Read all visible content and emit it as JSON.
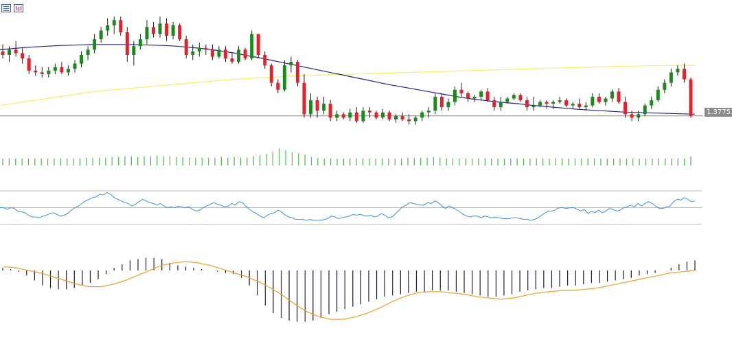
{
  "toolbar": {
    "icons": [
      "grid-icon",
      "chart-mode-icon"
    ]
  },
  "price_label": "1.37753",
  "colors": {
    "bull": "#1a8a1a",
    "bear": "#e8202a",
    "ma_fast": "#1f1fa0",
    "ma_slow": "#ffee55",
    "volume": "#44bb44",
    "rsi": "#3a8fdc",
    "hist": "#1a1a40",
    "signal": "#f0a020",
    "price_line": "#8a8a8a",
    "guide": "#b8b8b8"
  },
  "chart_data": [
    {
      "type": "candlestick",
      "title": "",
      "xlabel": "",
      "ylabel": "",
      "ylim": [
        1.369,
        1.408
      ],
      "current_price": 1.37753,
      "candles": [
        [
          1.396,
          1.398,
          1.394,
          1.395
        ],
        [
          1.395,
          1.3975,
          1.393,
          1.3965
        ],
        [
          1.3965,
          1.399,
          1.3945,
          1.3955
        ],
        [
          1.3955,
          1.397,
          1.3925,
          1.394
        ],
        [
          1.394,
          1.395,
          1.3895,
          1.3905
        ],
        [
          1.3905,
          1.392,
          1.389,
          1.39
        ],
        [
          1.39,
          1.3915,
          1.3885,
          1.3895
        ],
        [
          1.3895,
          1.3915,
          1.3885,
          1.3905
        ],
        [
          1.3905,
          1.3925,
          1.3895,
          1.3915
        ],
        [
          1.3915,
          1.393,
          1.3895,
          1.39
        ],
        [
          1.39,
          1.392,
          1.389,
          1.391
        ],
        [
          1.391,
          1.3935,
          1.39,
          1.3925
        ],
        [
          1.3925,
          1.396,
          1.3915,
          1.395
        ],
        [
          1.395,
          1.3975,
          1.3935,
          1.3965
        ],
        [
          1.3965,
          1.401,
          1.3955,
          1.3995
        ],
        [
          1.3995,
          1.403,
          1.3985,
          1.402
        ],
        [
          1.402,
          1.4055,
          1.4005,
          1.4035
        ],
        [
          1.4035,
          1.406,
          1.401,
          1.405
        ],
        [
          1.405,
          1.406,
          1.4005,
          1.4015
        ],
        [
          1.4015,
          1.403,
          1.393,
          1.395
        ],
        [
          1.395,
          1.399,
          1.392,
          1.3975
        ],
        [
          1.3975,
          1.401,
          1.3965,
          1.3995
        ],
        [
          1.3995,
          1.405,
          1.398,
          1.403
        ],
        [
          1.403,
          1.4045,
          1.4,
          1.401
        ],
        [
          1.401,
          1.406,
          1.4,
          1.404
        ],
        [
          1.404,
          1.4055,
          1.399,
          1.4005
        ],
        [
          1.4005,
          1.4045,
          1.3995,
          1.4035
        ],
        [
          1.4035,
          1.404,
          1.399,
          1.3995
        ],
        [
          1.3995,
          1.4005,
          1.394,
          1.395
        ],
        [
          1.395,
          1.398,
          1.3935,
          1.396
        ],
        [
          1.396,
          1.3985,
          1.3945,
          1.397
        ],
        [
          1.397,
          1.398,
          1.395,
          1.3965
        ],
        [
          1.3965,
          1.398,
          1.3935,
          1.3945
        ],
        [
          1.3945,
          1.3975,
          1.394,
          1.3965
        ],
        [
          1.3965,
          1.3975,
          1.393,
          1.394
        ],
        [
          1.394,
          1.3955,
          1.3925,
          1.393
        ],
        [
          1.393,
          1.3975,
          1.3925,
          1.3965
        ],
        [
          1.3965,
          1.397,
          1.3935,
          1.394
        ],
        [
          1.394,
          1.402,
          1.3935,
          1.401
        ],
        [
          1.401,
          1.401,
          1.394,
          1.395
        ],
        [
          1.395,
          1.396,
          1.391,
          1.392
        ],
        [
          1.392,
          1.3925,
          1.386,
          1.387
        ],
        [
          1.387,
          1.388,
          1.384,
          1.385
        ],
        [
          1.385,
          1.3935,
          1.3845,
          1.392
        ],
        [
          1.392,
          1.3945,
          1.39,
          1.393
        ],
        [
          1.393,
          1.3935,
          1.386,
          1.387
        ],
        [
          1.387,
          1.3895,
          1.377,
          1.378
        ],
        [
          1.378,
          1.384,
          1.377,
          1.382
        ],
        [
          1.382,
          1.383,
          1.377,
          1.379
        ],
        [
          1.379,
          1.383,
          1.378,
          1.381
        ],
        [
          1.381,
          1.382,
          1.376,
          1.377
        ],
        [
          1.377,
          1.379,
          1.376,
          1.378
        ],
        [
          1.378,
          1.3785,
          1.3765,
          1.377
        ],
        [
          1.377,
          1.3795,
          1.376,
          1.3785
        ],
        [
          1.3785,
          1.38,
          1.3755,
          1.376
        ],
        [
          1.376,
          1.38,
          1.3755,
          1.379
        ],
        [
          1.379,
          1.38,
          1.377,
          1.3785
        ],
        [
          1.3785,
          1.379,
          1.3765,
          1.377
        ],
        [
          1.377,
          1.3795,
          1.3765,
          1.3785
        ],
        [
          1.3785,
          1.379,
          1.376,
          1.3765
        ],
        [
          1.3765,
          1.378,
          1.3755,
          1.3775
        ],
        [
          1.3775,
          1.3785,
          1.376,
          1.3765
        ],
        [
          1.3765,
          1.378,
          1.375,
          1.376
        ],
        [
          1.376,
          1.3775,
          1.375,
          1.377
        ],
        [
          1.377,
          1.379,
          1.376,
          1.3785
        ],
        [
          1.3785,
          1.38,
          1.377,
          1.379
        ],
        [
          1.379,
          1.384,
          1.378,
          1.383
        ],
        [
          1.383,
          1.384,
          1.379,
          1.38
        ],
        [
          1.38,
          1.3825,
          1.379,
          1.3815
        ],
        [
          1.3815,
          1.386,
          1.3805,
          1.385
        ],
        [
          1.385,
          1.387,
          1.383,
          1.384
        ],
        [
          1.384,
          1.3845,
          1.3815,
          1.3825
        ],
        [
          1.3825,
          1.3835,
          1.3815,
          1.383
        ],
        [
          1.383,
          1.385,
          1.382,
          1.3845
        ],
        [
          1.3845,
          1.3855,
          1.3815,
          1.382
        ],
        [
          1.382,
          1.383,
          1.379,
          1.38
        ],
        [
          1.38,
          1.383,
          1.379,
          1.3815
        ],
        [
          1.3815,
          1.383,
          1.381,
          1.3825
        ],
        [
          1.3825,
          1.384,
          1.382,
          1.3835
        ],
        [
          1.3835,
          1.384,
          1.3815,
          1.382
        ],
        [
          1.382,
          1.383,
          1.379,
          1.38
        ],
        [
          1.38,
          1.383,
          1.379,
          1.3805
        ],
        [
          1.3805,
          1.382,
          1.38,
          1.3815
        ],
        [
          1.3815,
          1.382,
          1.3795,
          1.381
        ],
        [
          1.381,
          1.382,
          1.3795,
          1.3815
        ],
        [
          1.3815,
          1.383,
          1.381,
          1.382
        ],
        [
          1.382,
          1.3825,
          1.38,
          1.3805
        ],
        [
          1.3805,
          1.3815,
          1.3795,
          1.381
        ],
        [
          1.381,
          1.3825,
          1.3795,
          1.38
        ],
        [
          1.38,
          1.3815,
          1.379,
          1.3805
        ],
        [
          1.3805,
          1.384,
          1.38,
          1.383
        ],
        [
          1.383,
          1.384,
          1.381,
          1.3815
        ],
        [
          1.3815,
          1.383,
          1.3805,
          1.3825
        ],
        [
          1.3825,
          1.385,
          1.3815,
          1.3845
        ],
        [
          1.3845,
          1.3855,
          1.381,
          1.3815
        ],
        [
          1.3815,
          1.383,
          1.377,
          1.378
        ],
        [
          1.378,
          1.379,
          1.376,
          1.377
        ],
        [
          1.377,
          1.379,
          1.376,
          1.378
        ],
        [
          1.378,
          1.381,
          1.3775,
          1.3805
        ],
        [
          1.3805,
          1.383,
          1.3795,
          1.382
        ],
        [
          1.382,
          1.386,
          1.3815,
          1.385
        ],
        [
          1.385,
          1.388,
          1.384,
          1.387
        ],
        [
          1.387,
          1.391,
          1.386,
          1.39
        ],
        [
          1.39,
          1.392,
          1.389,
          1.391
        ],
        [
          1.391,
          1.3925,
          1.387,
          1.388
        ],
        [
          1.388,
          1.3885,
          1.377,
          1.3775
        ]
      ],
      "ma_fast": [
        1.3965,
        1.3968,
        1.3971,
        1.3973,
        1.3975,
        1.3977,
        1.3978,
        1.3979,
        1.398,
        1.398,
        1.398,
        1.398,
        1.3979,
        1.3978,
        1.3977,
        1.3975,
        1.3972,
        1.3969,
        1.3965,
        1.396,
        1.3955,
        1.3948,
        1.3942,
        1.3935,
        1.3928,
        1.3921,
        1.3914,
        1.3907,
        1.39,
        1.3893,
        1.3886,
        1.3879,
        1.3872,
        1.3865,
        1.3859,
        1.3853,
        1.3847,
        1.3841,
        1.3835,
        1.3829,
        1.3824,
        1.382,
        1.3816,
        1.3813,
        1.381,
        1.3806,
        1.3803,
        1.38,
        1.3797,
        1.3794,
        1.3792,
        1.379,
        1.3788,
        1.3786,
        1.3785,
        1.3784,
        1.3783,
        1.3782,
        1.3781,
        1.378
      ],
      "ma_slow": [
        1.3805,
        1.381,
        1.3815,
        1.382,
        1.3825,
        1.383,
        1.3835,
        1.384,
        1.3845,
        1.3848,
        1.3851,
        1.3854,
        1.3857,
        1.386,
        1.3863,
        1.3866,
        1.3869,
        1.3872,
        1.3875,
        1.3878,
        1.388,
        1.3882,
        1.3884,
        1.3886,
        1.3888,
        1.389,
        1.3891,
        1.3892,
        1.3893,
        1.3894,
        1.3895,
        1.3896,
        1.3897,
        1.3898,
        1.3899,
        1.39,
        1.3901,
        1.3902,
        1.3903,
        1.3904,
        1.3905,
        1.3906,
        1.3907,
        1.3908,
        1.3909,
        1.391,
        1.3911,
        1.3912,
        1.3913,
        1.3914,
        1.3915,
        1.3916,
        1.3917,
        1.3918,
        1.3918,
        1.3919,
        1.3919,
        1.392,
        1.392,
        1.392
      ]
    },
    {
      "type": "bar",
      "title": "",
      "values": [
        9,
        9,
        9,
        9,
        9,
        9,
        9,
        9,
        9,
        9,
        9,
        9,
        9,
        10,
        10,
        10,
        10,
        11,
        11,
        12,
        12,
        11,
        12,
        12,
        13,
        12,
        12,
        11,
        11,
        10,
        10,
        10,
        10,
        10,
        11,
        10,
        11,
        10,
        10,
        12,
        13,
        15,
        18,
        22,
        20,
        17,
        16,
        14,
        11,
        10,
        9,
        9,
        9,
        9,
        9,
        9,
        9,
        9,
        9,
        9,
        9,
        9,
        9,
        10,
        10,
        10,
        10,
        11,
        10,
        9,
        9,
        9,
        9,
        9,
        9,
        9,
        9,
        9,
        9,
        9,
        9,
        9,
        9,
        9,
        9,
        9,
        9,
        9,
        9,
        9,
        9,
        9,
        9,
        9,
        9,
        9,
        9,
        9,
        9,
        9,
        9,
        9,
        9,
        9,
        9,
        9,
        9,
        12
      ],
      "ylim": [
        0,
        25
      ]
    },
    {
      "type": "line",
      "title": "",
      "levels": [
        70,
        50,
        30
      ],
      "ylim": [
        30,
        70
      ],
      "values": [
        50,
        50,
        48,
        50,
        49,
        46,
        45,
        44,
        41,
        39,
        39,
        38,
        40,
        41,
        43,
        44,
        42,
        40,
        41,
        43,
        47,
        50,
        52,
        55,
        58,
        60,
        62,
        63,
        66,
        65,
        68,
        66,
        62,
        60,
        58,
        56,
        55,
        52,
        54,
        57,
        60,
        58,
        56,
        55,
        53,
        55,
        52,
        50,
        51,
        50,
        52,
        51,
        50,
        51,
        48,
        46,
        47,
        50,
        52,
        54,
        56,
        54,
        53,
        51,
        52,
        55,
        53,
        57,
        56,
        52,
        48,
        45,
        43,
        40,
        38,
        41,
        43,
        44,
        47,
        45,
        41,
        39,
        38,
        36,
        36,
        36,
        35,
        36,
        35,
        35,
        35,
        36,
        37,
        40,
        39,
        37,
        38,
        39,
        40,
        42,
        41,
        42,
        41,
        40,
        41,
        39,
        40,
        43,
        41,
        38,
        39,
        43,
        47,
        51,
        53,
        56,
        55,
        54,
        53,
        53,
        56,
        55,
        58,
        56,
        52,
        49,
        52,
        50,
        48,
        45,
        42,
        40,
        39,
        40,
        40,
        38,
        40,
        39,
        38,
        39,
        38,
        37,
        37,
        37,
        38,
        38,
        37,
        36,
        36,
        35,
        36,
        38,
        41,
        44,
        46,
        46,
        48,
        50,
        50,
        49,
        50,
        50,
        48,
        46,
        48,
        43,
        46,
        44,
        47,
        44,
        46,
        49,
        48,
        46,
        47,
        50,
        51,
        53,
        51,
        55,
        52,
        55,
        57,
        55,
        52,
        49,
        49,
        51,
        52,
        57,
        60,
        59,
        62,
        60,
        57,
        58
      ]
    }
  ],
  "macd_data": {
    "type": "histogram-line",
    "title": "",
    "ylim": [
      -0.0045,
      0.0012
    ],
    "histogram": [
      0.0002,
      0.0001,
      -0.0001,
      -0.0004,
      -0.0008,
      -0.0012,
      -0.0014,
      -0.0015,
      -0.0015,
      -0.0014,
      -0.0012,
      -0.001,
      -0.0007,
      -0.0003,
      0.0002,
      0.0005,
      0.0008,
      0.0009,
      0.001,
      0.001,
      0.0009,
      0.0006,
      0.0004,
      0.0003,
      0.0002,
      0.0001,
      0.0,
      -0.0001,
      -0.0002,
      -0.0003,
      -0.0006,
      -0.0012,
      -0.002,
      -0.0028,
      -0.0034,
      -0.0038,
      -0.004,
      -0.0041,
      -0.0041,
      -0.004,
      -0.0038,
      -0.0035,
      -0.0033,
      -0.0031,
      -0.0029,
      -0.0027,
      -0.0025,
      -0.0023,
      -0.0021,
      -0.002,
      -0.0019,
      -0.0018,
      -0.0017,
      -0.0017,
      -0.0016,
      -0.0016,
      -0.0016,
      -0.0017,
      -0.0018,
      -0.0019,
      -0.002,
      -0.0021,
      -0.0021,
      -0.002,
      -0.0019,
      -0.0017,
      -0.0016,
      -0.0015,
      -0.0014,
      -0.0014,
      -0.0013,
      -0.0012,
      -0.0012,
      -0.0011,
      -0.001,
      -0.001,
      -0.0009,
      -0.0008,
      -0.0007,
      -0.0006,
      -0.0004,
      -0.0003,
      -0.0002,
      0.0,
      0.0002,
      0.0005,
      0.0007,
      0.0008
    ],
    "signal": [
      0.0003,
      0.0002,
      0.0,
      -0.0002,
      -0.0005,
      -0.0008,
      -0.0011,
      -0.0013,
      -0.0013,
      -0.0011,
      -0.0008,
      -0.0004,
      0.0,
      0.0004,
      0.0006,
      0.0007,
      0.0006,
      0.0004,
      0.0001,
      -0.0002,
      -0.0005,
      -0.0009,
      -0.0014,
      -0.002,
      -0.0027,
      -0.0033,
      -0.0037,
      -0.0039,
      -0.0039,
      -0.0037,
      -0.0034,
      -0.003,
      -0.0025,
      -0.0021,
      -0.0018,
      -0.0017,
      -0.0017,
      -0.0018,
      -0.0019,
      -0.0021,
      -0.0022,
      -0.0023,
      -0.0022,
      -0.002,
      -0.0018,
      -0.0017,
      -0.0016,
      -0.0016,
      -0.0015,
      -0.0014,
      -0.0012,
      -0.001,
      -0.0008,
      -0.0006,
      -0.0004,
      -0.0002,
      -0.0001,
      0.0
    ]
  }
}
